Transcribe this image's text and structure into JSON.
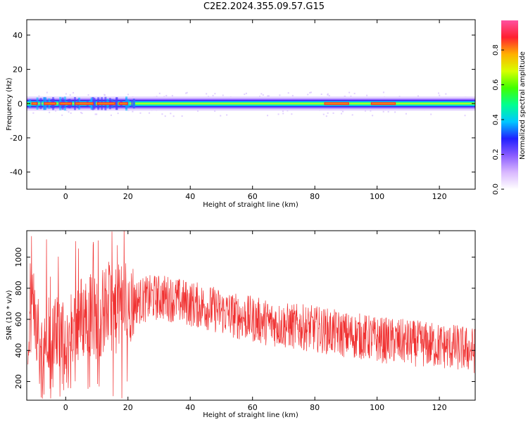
{
  "title": "C2E2.2024.355.09.57.G15",
  "chart_data": [
    {
      "type": "heatmap",
      "xlabel": "Height of straight line (km)",
      "ylabel": "Frequency (Hz)",
      "xlim": [
        -12.5,
        131.5
      ],
      "ylim": [
        -50,
        49
      ],
      "xticks": [
        0,
        20,
        40,
        60,
        80,
        100,
        120
      ],
      "yticks": [
        -40,
        -20,
        0,
        20,
        40
      ],
      "colorbar": {
        "label": "Normalized spectral amplitude",
        "range": [
          0,
          0.97
        ],
        "ticks": [
          "0.0",
          "0.2",
          "0.4",
          "0.6",
          "0.8"
        ],
        "colormap": [
          "#ffffff",
          "#d9b8ff",
          "#8a5cff",
          "#2020ff",
          "#00c8ff",
          "#00ff90",
          "#40ff00",
          "#d8ff00",
          "#ffb000",
          "#ff2030",
          "#ff50a0"
        ]
      },
      "band_center_hz": 0,
      "hot_spans_km": [
        [
          -11,
          -9
        ],
        [
          -7,
          -3
        ],
        [
          -2,
          2
        ],
        [
          3,
          9
        ],
        [
          10,
          16
        ],
        [
          17,
          20
        ],
        [
          83,
          91
        ],
        [
          98,
          106
        ]
      ]
    },
    {
      "type": "line",
      "xlabel": "Height of straight line (km)",
      "ylabel": "SNR (10 * v/v)",
      "xlim": [
        -12.5,
        131.5
      ],
      "ylim": [
        80,
        1170
      ],
      "xticks": [
        0,
        20,
        40,
        60,
        80,
        100,
        120
      ],
      "yticks": [
        200,
        400,
        600,
        800,
        1000
      ],
      "color": "#f03030",
      "x": [
        -12,
        -10,
        -8,
        -6,
        -4,
        -2,
        0,
        2,
        4,
        6,
        8,
        10,
        12,
        14,
        16,
        18,
        20,
        24,
        28,
        32,
        36,
        40,
        45,
        50,
        55,
        60,
        65,
        70,
        75,
        80,
        85,
        90,
        95,
        100,
        105,
        110,
        115,
        120,
        125,
        131
      ],
      "y": [
        480,
        700,
        350,
        600,
        420,
        560,
        320,
        560,
        600,
        620,
        640,
        600,
        650,
        700,
        640,
        720,
        700,
        720,
        740,
        740,
        720,
        700,
        680,
        650,
        620,
        600,
        580,
        560,
        550,
        540,
        520,
        500,
        490,
        470,
        460,
        450,
        440,
        430,
        420,
        400
      ]
    }
  ]
}
